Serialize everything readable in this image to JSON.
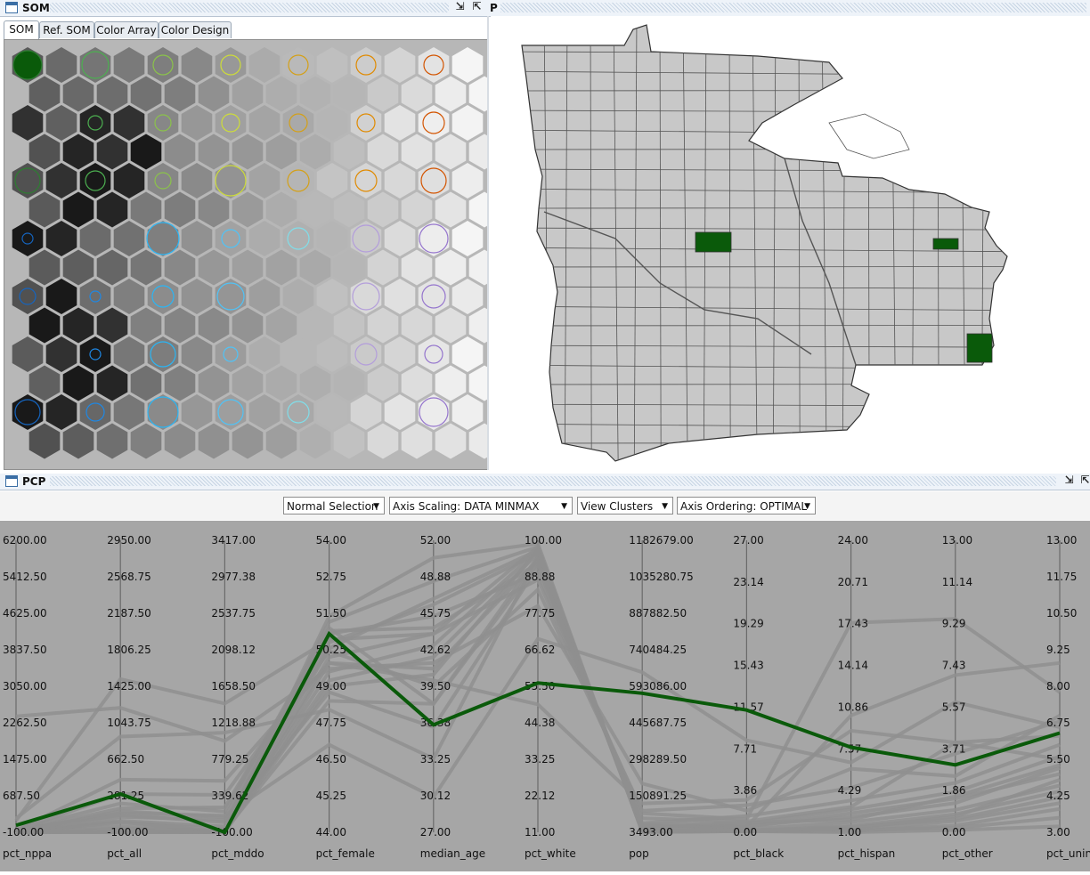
{
  "som_window": {
    "title": "SOM",
    "tabs": [
      "SOM",
      "Ref. SOM",
      "Color Array",
      "Color Design"
    ],
    "active_tab": "SOM"
  },
  "map_window": {
    "title_fragment": "P"
  },
  "pcp_window": {
    "title": "PCP",
    "controls": {
      "selection_mode": "Normal Selection",
      "axis_scaling": "Axis Scaling: DATA MINMAX",
      "view_mode": "View Clusters",
      "axis_ordering": "Axis Ordering: OPTIMAL"
    }
  },
  "colors": {
    "selected": "#0a5a0a",
    "map_fill": "#c8c8c8",
    "pcp_background": "#a6a6a6",
    "pcp_lines": "#8f8f8f",
    "som_background": "#b7b7b7"
  },
  "chart_data": {
    "type": "parallel_coordinates",
    "axes": [
      {
        "name": "pct_nppa",
        "min": -100,
        "max": 6200,
        "ticks": [
          "6200.00",
          "5412.50",
          "4625.00",
          "3837.50",
          "3050.00",
          "2262.50",
          "1475.00",
          "687.50",
          "-100.00"
        ]
      },
      {
        "name": "pct_all",
        "min": -100,
        "max": 2950,
        "ticks": [
          "2950.00",
          "2568.75",
          "2187.50",
          "1806.25",
          "1425.00",
          "1043.75",
          "662.50",
          "281.25",
          "-100.00"
        ]
      },
      {
        "name": "pct_mddo",
        "min": -100,
        "max": 3417,
        "ticks": [
          "3417.00",
          "2977.38",
          "2537.75",
          "2098.12",
          "1658.50",
          "1218.88",
          "779.25",
          "339.62",
          "-100.00"
        ]
      },
      {
        "name": "pct_female",
        "min": 44,
        "max": 54,
        "ticks": [
          "54.00",
          "52.75",
          "51.50",
          "50.25",
          "49.00",
          "47.75",
          "46.50",
          "45.25",
          "44.00"
        ]
      },
      {
        "name": "median_age",
        "min": 27,
        "max": 52,
        "ticks": [
          "52.00",
          "48.88",
          "45.75",
          "42.62",
          "39.50",
          "36.38",
          "33.25",
          "30.12",
          "27.00"
        ]
      },
      {
        "name": "pct_white",
        "min": 11,
        "max": 100,
        "ticks": [
          "100.00",
          "88.88",
          "77.75",
          "66.62",
          "55.50",
          "44.38",
          "33.25",
          "22.12",
          "11.00"
        ]
      },
      {
        "name": "pop",
        "min": 3493,
        "max": 1182679,
        "ticks": [
          "1182679.00",
          "1035280.75",
          "887882.50",
          "740484.25",
          "593086.00",
          "445687.75",
          "298289.50",
          "150891.25",
          "3493.00"
        ]
      },
      {
        "name": "pct_black",
        "min": 0,
        "max": 27,
        "ticks": [
          "27.00",
          "23.14",
          "19.29",
          "15.43",
          "11.57",
          "7.71",
          "3.86",
          "0.00"
        ]
      },
      {
        "name": "pct_hispan",
        "min": 1,
        "max": 24,
        "ticks": [
          "24.00",
          "20.71",
          "17.43",
          "14.14",
          "10.86",
          "7.57",
          "4.29",
          "1.00"
        ]
      },
      {
        "name": "pct_other",
        "min": 0,
        "max": 13,
        "ticks": [
          "13.00",
          "11.14",
          "9.29",
          "7.43",
          "5.57",
          "3.71",
          "1.86",
          "0.00"
        ]
      },
      {
        "name": "pct_unins",
        "min": 3,
        "max": 13,
        "ticks": [
          "13.00",
          "11.75",
          "10.50",
          "9.25",
          "8.00",
          "6.75",
          "5.50",
          "4.25",
          "3.00"
        ]
      }
    ],
    "highlighted_record": [
      50,
      300,
      -100,
      50.8,
      36.2,
      56.5,
      565000,
      11.3,
      7.7,
      3.0,
      6.4
    ],
    "background_records": [
      [
        2400,
        1200,
        1000,
        49.6,
        41.5,
        80,
        200000,
        2,
        6,
        2.5,
        7
      ],
      [
        150,
        1500,
        1450,
        50.6,
        44,
        88,
        80000,
        1.2,
        17.5,
        9.5,
        7.8
      ],
      [
        200,
        900,
        1100,
        48.2,
        33.3,
        95,
        30000,
        0.5,
        10.2,
        7,
        8.8
      ],
      [
        -80,
        150,
        200,
        50.8,
        45.5,
        90,
        60000,
        1,
        3,
        4,
        5.5
      ],
      [
        -50,
        100,
        100,
        47,
        30,
        70,
        650000,
        8.5,
        6.5,
        5.8,
        6.6
      ],
      [
        -60,
        450,
        520,
        49.8,
        40,
        50,
        120000,
        3,
        9,
        4,
        6.3
      ],
      [
        -40,
        200,
        150,
        51,
        38,
        93,
        30000,
        0.5,
        2.5,
        1.5,
        5
      ],
      [
        -90,
        0,
        -60,
        50.3,
        47,
        97,
        10000,
        0.1,
        1.5,
        0.8,
        4.4
      ],
      [
        -95,
        -40,
        -90,
        49.2,
        42,
        96,
        8000,
        0.2,
        1.2,
        0.5,
        4
      ],
      [
        -99,
        -90,
        -99,
        50,
        44,
        98,
        5000,
        0.1,
        1.1,
        0.3,
        3.8
      ],
      [
        -100,
        -100,
        -100,
        49.5,
        43,
        97,
        9000,
        0.3,
        1.8,
        1.0,
        4.6
      ],
      [
        -100,
        -60,
        -80,
        48.5,
        38,
        95,
        20000,
        0.6,
        2.2,
        1.3,
        5.2
      ],
      [
        -70,
        80,
        20,
        50.5,
        46.5,
        96,
        15000,
        0.2,
        1.4,
        0.6,
        4.2
      ],
      [
        -85,
        20,
        -30,
        51.2,
        48.5,
        98,
        6000,
        0.1,
        1.2,
        0.2,
        3.5
      ],
      [
        -100,
        10,
        -100,
        49.8,
        41,
        94,
        25000,
        0.8,
        2.8,
        1.8,
        5.6
      ],
      [
        -90,
        60,
        50,
        48.8,
        36,
        92,
        40000,
        1.5,
        3.5,
        2.2,
        6.0
      ],
      [
        -100,
        -100,
        -100,
        51.4,
        50.5,
        99,
        4000,
        0.1,
        1.0,
        0.1,
        3.2
      ],
      [
        -60,
        300,
        350,
        50.2,
        39.5,
        85,
        90000,
        2.5,
        4.5,
        3.5,
        6.8
      ],
      [
        -100,
        -80,
        -100,
        49.0,
        40.5,
        97,
        11000,
        0.2,
        1.3,
        0.7,
        4.8
      ],
      [
        -100,
        120,
        80,
        50.9,
        44.5,
        93,
        35000,
        0.9,
        2.0,
        1.6,
        5.3
      ]
    ]
  }
}
